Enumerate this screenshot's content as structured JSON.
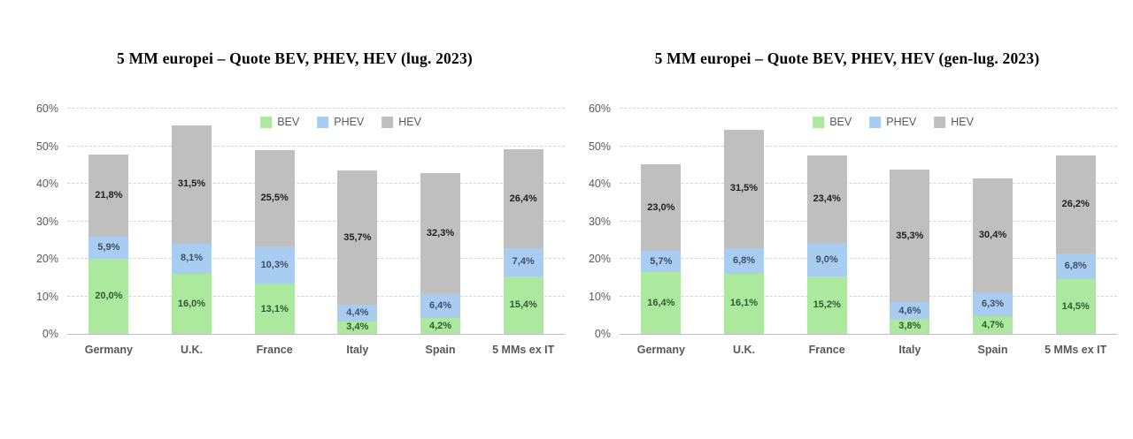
{
  "page_background": "#ffffff",
  "axis": {
    "tick_labels": [
      "0%",
      "10%",
      "20%",
      "30%",
      "40%",
      "50%",
      "60%"
    ],
    "text_color": "#595959"
  },
  "colors": {
    "BEV": "#ace99e",
    "PHEV": "#a8cdf1",
    "HEV": "#bfbfbf"
  },
  "label_colors": {
    "BEV": "#2f5b2f",
    "PHEV": "#3f4f6b",
    "HEV": "#1f1f1f"
  },
  "chart_data": [
    {
      "type": "bar",
      "stacked": true,
      "title": "5 MM europei – Quote BEV, PHEV, HEV (lug. 2023)",
      "categories": [
        "Germany",
        "U.K.",
        "France",
        "Italy",
        "Spain",
        "5 MMs ex IT"
      ],
      "series": [
        {
          "name": "BEV",
          "values": [
            20.0,
            16.0,
            13.1,
            3.4,
            4.2,
            15.4
          ]
        },
        {
          "name": "PHEV",
          "values": [
            5.9,
            8.1,
            10.3,
            4.4,
            6.4,
            7.4
          ]
        },
        {
          "name": "HEV",
          "values": [
            21.8,
            31.5,
            25.5,
            35.7,
            32.3,
            26.4
          ]
        }
      ],
      "xlabel": "",
      "ylabel": "",
      "ylim": [
        0,
        60
      ],
      "yticks_pct": [
        0,
        10,
        20,
        30,
        40,
        50,
        60
      ],
      "grid": true,
      "legend": [
        "BEV",
        "PHEV",
        "HEV"
      ],
      "legend_position": "inside-top-center",
      "value_label_format": "decimal-comma-percent"
    },
    {
      "type": "bar",
      "stacked": true,
      "title": "5 MM europei – Quote BEV, PHEV, HEV (gen-lug. 2023)",
      "categories": [
        "Germany",
        "U.K.",
        "France",
        "Italy",
        "Spain",
        "5 MMs ex IT"
      ],
      "series": [
        {
          "name": "BEV",
          "values": [
            16.4,
            16.1,
            15.2,
            3.8,
            4.7,
            14.5
          ]
        },
        {
          "name": "PHEV",
          "values": [
            5.7,
            6.8,
            9.0,
            4.6,
            6.3,
            6.8
          ]
        },
        {
          "name": "HEV",
          "values": [
            23.0,
            31.5,
            23.4,
            35.3,
            30.4,
            26.2
          ]
        }
      ],
      "xlabel": "",
      "ylabel": "",
      "ylim": [
        0,
        60
      ],
      "yticks_pct": [
        0,
        10,
        20,
        30,
        40,
        50,
        60
      ],
      "grid": true,
      "legend": [
        "BEV",
        "PHEV",
        "HEV"
      ],
      "legend_position": "inside-top-center",
      "value_label_format": "decimal-comma-percent"
    }
  ]
}
